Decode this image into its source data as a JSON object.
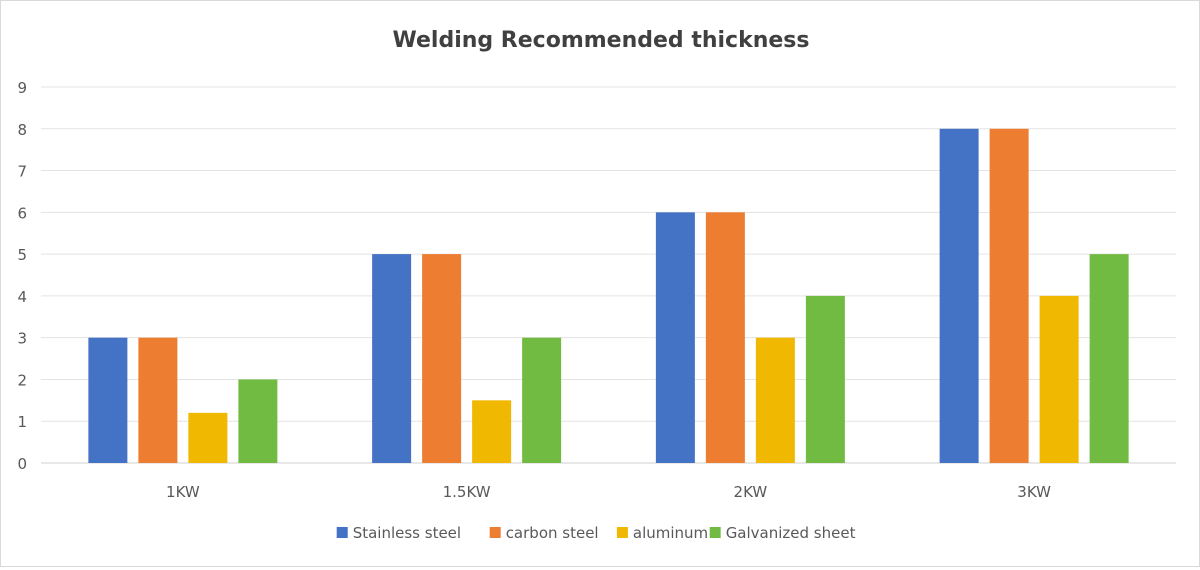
{
  "chart_data": {
    "type": "bar",
    "title": "Welding Recommended thickness",
    "xlabel": "",
    "ylabel": "",
    "categories": [
      "1KW",
      "1.5KW",
      "2KW",
      "3KW"
    ],
    "series": [
      {
        "name": "Stainless steel",
        "color": "#4472C4",
        "values": [
          3,
          5,
          6,
          8
        ]
      },
      {
        "name": "carbon steel",
        "color": "#ED7D31",
        "values": [
          3,
          5,
          6,
          8
        ]
      },
      {
        "name": "aluminum",
        "color": "#F0B800",
        "values": [
          1.2,
          1.5,
          3,
          4
        ]
      },
      {
        "name": "Galvanized sheet",
        "color": "#72BB43",
        "values": [
          2,
          3,
          4,
          5
        ]
      }
    ],
    "ylim": [
      0,
      9
    ],
    "yticks": [
      "0",
      "1",
      "2",
      "3",
      "4",
      "5",
      "6",
      "7",
      "8",
      "9"
    ],
    "grid": true,
    "legend_position": "bottom"
  }
}
